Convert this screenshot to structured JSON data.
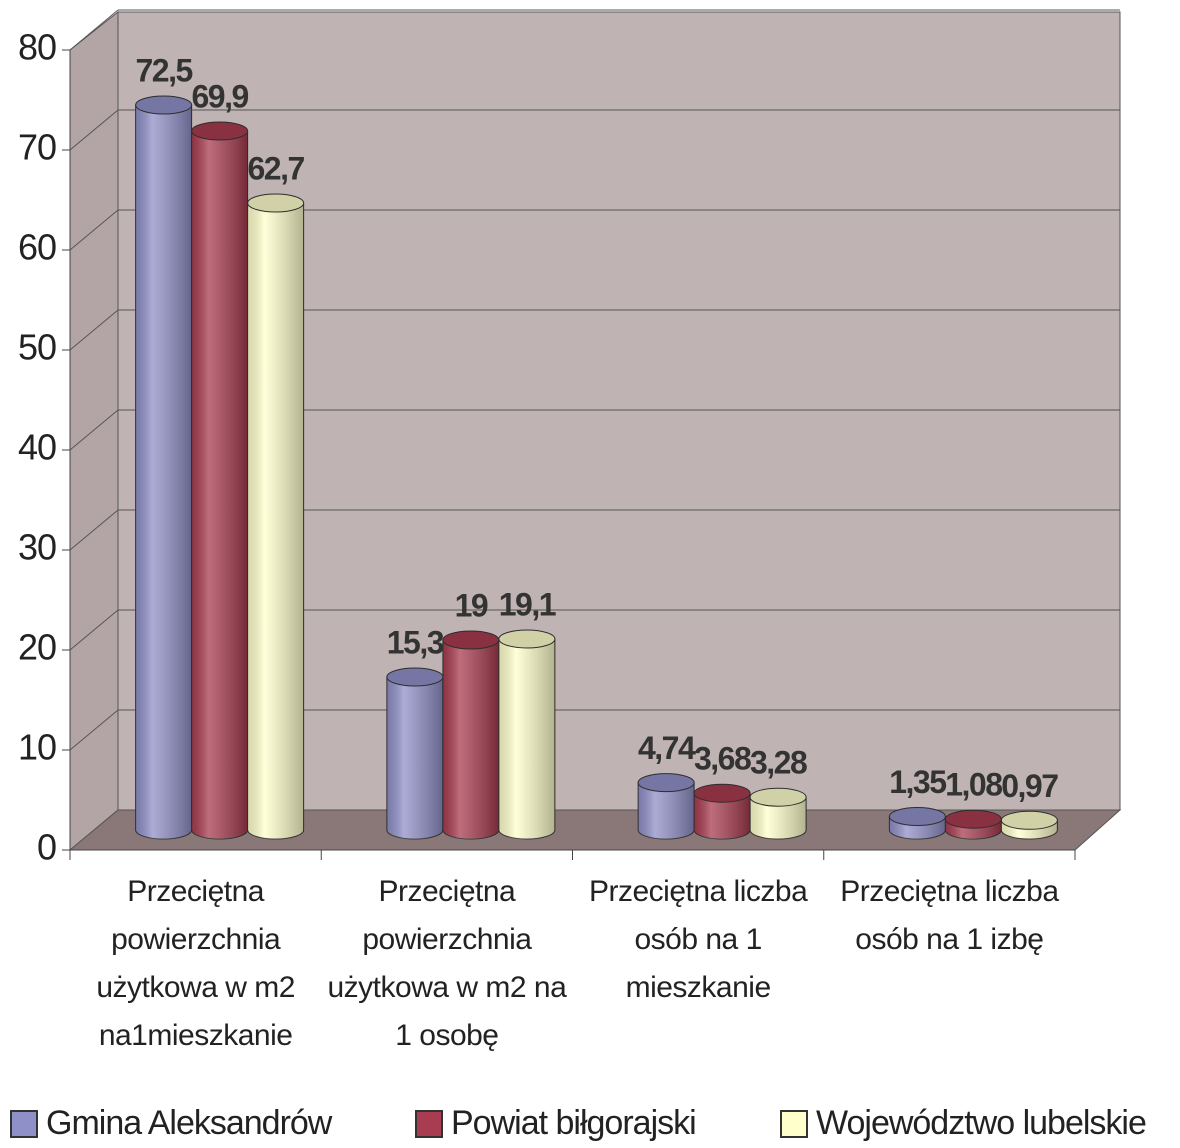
{
  "chart_data": {
    "type": "bar",
    "categories": [
      "Przeciętna powierzchnia użytkowa w m2 na1mieszkanie",
      "Przeciętna powierzchnia użytkowa w m2 na 1 osobę",
      "Przeciętna liczba osób na 1 mieszkanie",
      "Przeciętna liczba osób na 1 izbę"
    ],
    "series": [
      {
        "name": "Gmina Aleksandrów",
        "color": "#9090c8",
        "values": [
          72.5,
          15.3,
          4.74,
          1.35
        ],
        "value_labels": [
          "72,5",
          "15,3",
          "4,74",
          "1,35"
        ]
      },
      {
        "name": "Powiat biłgorajski",
        "color": "#a83c50",
        "values": [
          69.9,
          19,
          3.68,
          1.08
        ],
        "value_labels": [
          "69,9",
          "19",
          "3,68",
          "1,08"
        ]
      },
      {
        "name": "Województwo lubelskie",
        "color": "#ffffcc",
        "values": [
          62.7,
          19.1,
          3.28,
          0.97
        ],
        "value_labels": [
          "62,7",
          "19,1",
          "3,28",
          "0,97"
        ]
      }
    ],
    "ylim": [
      0,
      80
    ],
    "yticks": [
      0,
      10,
      20,
      30,
      40,
      50,
      60,
      70,
      80
    ],
    "grid": true,
    "legend": "bottom"
  }
}
